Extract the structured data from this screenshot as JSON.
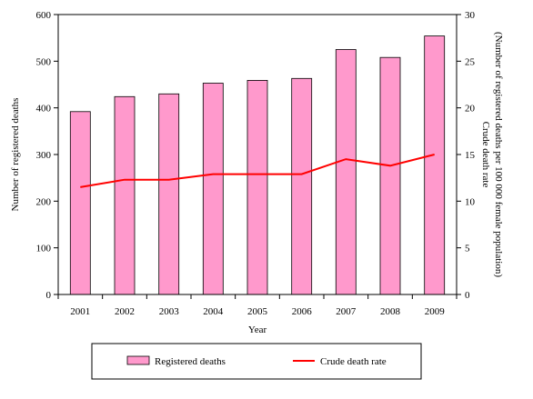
{
  "chart_data": {
    "type": "bar",
    "categories": [
      "2001",
      "2002",
      "2003",
      "2004",
      "2005",
      "2006",
      "2007",
      "2008",
      "2009"
    ],
    "series": [
      {
        "name": "Registered deaths",
        "type": "bar",
        "axis": "left",
        "color": "#ff99cc",
        "values": [
          392,
          424,
          430,
          453,
          459,
          463,
          525,
          508,
          554
        ]
      },
      {
        "name": "Crude death rate",
        "type": "line",
        "axis": "right",
        "color": "#ff0000",
        "values": [
          11.5,
          12.3,
          12.3,
          12.9,
          12.9,
          12.9,
          14.5,
          13.8,
          15.0
        ]
      }
    ],
    "xlabel": "Year",
    "ylabel": "Number of registered deaths",
    "y2label_line1": "Crude death rate",
    "y2label_line2": "(Number of registered deaths per 100 000 female population)",
    "ylim": [
      0,
      600
    ],
    "y2lim": [
      0,
      30
    ],
    "yticks": [
      "0",
      "100",
      "200",
      "300",
      "400",
      "500",
      "600"
    ],
    "y2ticks": [
      "0",
      "5",
      "10",
      "15",
      "20",
      "25",
      "30"
    ],
    "grid": false,
    "legend_position": "bottom"
  }
}
